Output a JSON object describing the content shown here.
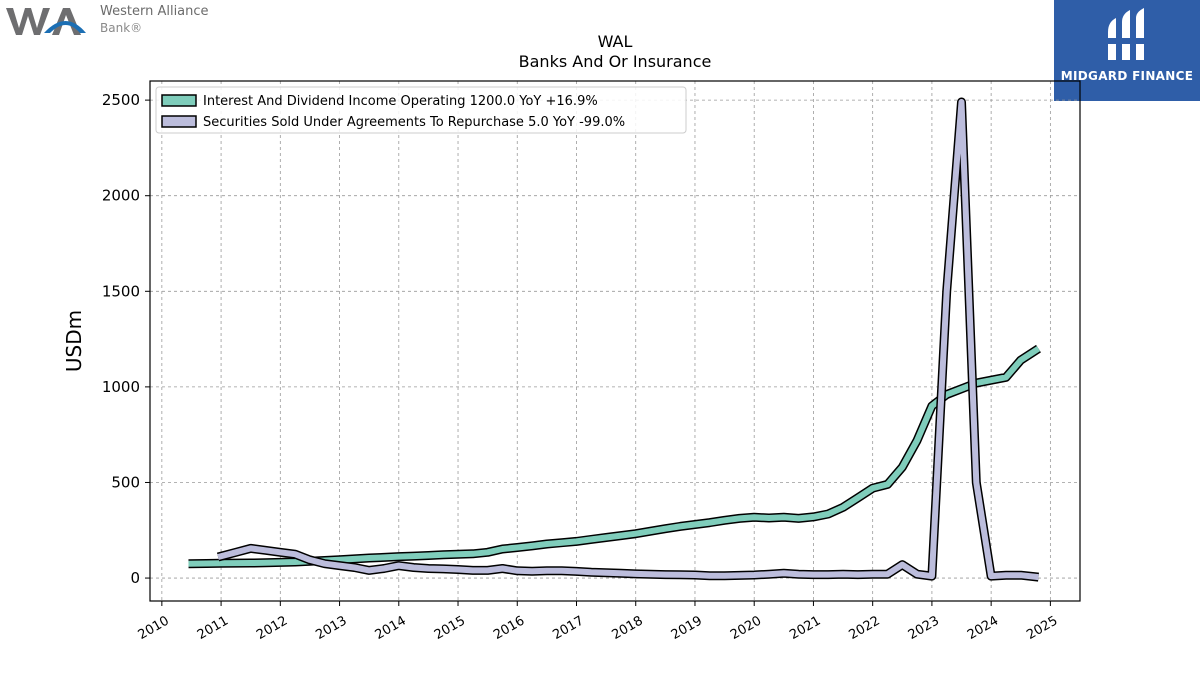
{
  "logo_left": {
    "name": "Western Alliance",
    "sub": "Bank®"
  },
  "logo_right": {
    "name": "MIDGARD FINANCE"
  },
  "chart_data": {
    "type": "line",
    "title": "WAL",
    "subtitle": "Banks And Or Insurance",
    "ylabel": "USDm",
    "xlabel": "",
    "ylim": [
      -120,
      2600
    ],
    "xlim": [
      2009.8,
      2025.5
    ],
    "yticks": [
      0,
      500,
      1000,
      1500,
      2000,
      2500
    ],
    "xticks": [
      2010,
      2011,
      2012,
      2013,
      2014,
      2015,
      2016,
      2017,
      2018,
      2019,
      2020,
      2021,
      2022,
      2023,
      2024,
      2025
    ],
    "grid": true,
    "legend_position": "top-left",
    "series": [
      {
        "name": "Interest And Dividend Income Operating",
        "legend": "Interest And Dividend Income Operating  1200.0 YoY +16.9%",
        "color": "#7fcdbb",
        "x": [
          2010.45,
          2010.75,
          2011.0,
          2011.25,
          2011.5,
          2011.75,
          2012.0,
          2012.25,
          2012.5,
          2012.75,
          2013.0,
          2013.25,
          2013.5,
          2013.75,
          2014.0,
          2014.25,
          2014.5,
          2014.75,
          2015.0,
          2015.25,
          2015.5,
          2015.75,
          2016.0,
          2016.25,
          2016.5,
          2016.75,
          2017.0,
          2017.25,
          2017.5,
          2017.75,
          2018.0,
          2018.25,
          2018.5,
          2018.75,
          2019.0,
          2019.25,
          2019.5,
          2019.75,
          2020.0,
          2020.25,
          2020.5,
          2020.75,
          2021.0,
          2021.25,
          2021.5,
          2021.75,
          2022.0,
          2022.25,
          2022.5,
          2022.75,
          2023.0,
          2023.25,
          2023.5,
          2023.75,
          2024.0,
          2024.25,
          2024.5,
          2024.8
        ],
        "values": [
          75,
          76,
          77,
          78,
          79,
          80,
          82,
          84,
          88,
          92,
          96,
          100,
          105,
          108,
          112,
          115,
          118,
          122,
          125,
          127,
          135,
          152,
          160,
          168,
          178,
          185,
          192,
          202,
          212,
          222,
          232,
          245,
          258,
          270,
          280,
          290,
          302,
          312,
          318,
          314,
          318,
          312,
          320,
          335,
          370,
          420,
          470,
          490,
          580,
          720,
          900,
          960,
          990,
          1020,
          1035,
          1050,
          1140,
          1200
        ]
      },
      {
        "name": "Securities Sold Under Agreements To Repurchase",
        "legend": "Securities Sold Under Agreements To Repurchase  5.0 YoY -99.0%",
        "color": "#bcbddc",
        "x": [
          2010.95,
          2011.25,
          2011.5,
          2011.75,
          2012.0,
          2012.25,
          2012.5,
          2012.75,
          2013.0,
          2013.25,
          2013.5,
          2013.75,
          2014.0,
          2014.25,
          2014.5,
          2014.75,
          2015.0,
          2015.25,
          2015.5,
          2015.75,
          2016.0,
          2016.25,
          2016.5,
          2016.75,
          2017.0,
          2017.25,
          2017.5,
          2017.75,
          2018.0,
          2018.25,
          2018.5,
          2018.75,
          2019.0,
          2019.25,
          2019.5,
          2019.75,
          2020.0,
          2020.25,
          2020.5,
          2020.75,
          2021.0,
          2021.25,
          2021.5,
          2021.75,
          2022.0,
          2022.25,
          2022.5,
          2022.75,
          2023.0,
          2023.25,
          2023.5,
          2023.75,
          2024.0,
          2024.25,
          2024.5,
          2024.8
        ],
        "values": [
          110,
          135,
          155,
          145,
          135,
          125,
          95,
          75,
          65,
          55,
          40,
          50,
          65,
          55,
          50,
          48,
          45,
          40,
          40,
          50,
          38,
          36,
          38,
          38,
          35,
          30,
          28,
          25,
          22,
          20,
          18,
          17,
          16,
          12,
          12,
          14,
          16,
          20,
          25,
          20,
          18,
          18,
          20,
          18,
          20,
          20,
          70,
          20,
          10,
          1500,
          2490,
          500,
          10,
          15,
          15,
          5
        ]
      }
    ]
  }
}
